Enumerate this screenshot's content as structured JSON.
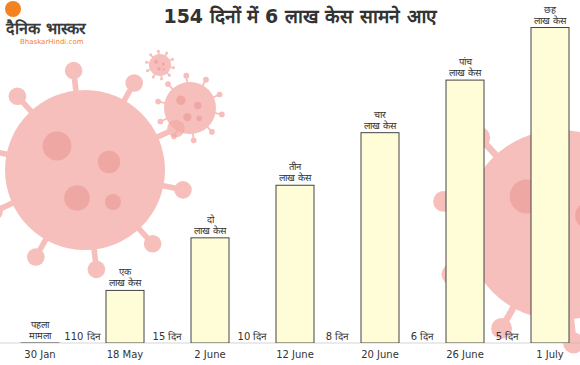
{
  "chart_data": {
    "type": "bar",
    "title": "154 दिनों में 6 लाख केस सामने आए",
    "logo_text": "दैनिक भास्कर",
    "logo_subtext": "BhaskarHindi.com",
    "categories": [
      "30 Jan",
      "18 May",
      "2 June",
      "12 June",
      "20 June",
      "26 June",
      "1 July"
    ],
    "values": [
      1e-05,
      1,
      2,
      3,
      4,
      5,
      6
    ],
    "value_labels": [
      "पहला मामला",
      "एक लाख केस",
      "दो लाख केस",
      "तीन लाख केस",
      "चार लाख केस",
      "पांच लाख केस",
      "छह लाख केस"
    ],
    "annotations": [
      "110 दिन",
      "15 दिन",
      "10 दिन",
      "8 दिन",
      "6 दिन",
      "5 दिन"
    ],
    "color": "#fffdd8",
    "ylim": [
      0,
      6.2
    ],
    "tick_labels": "x",
    "grid": false,
    "data_labels": true
  }
}
